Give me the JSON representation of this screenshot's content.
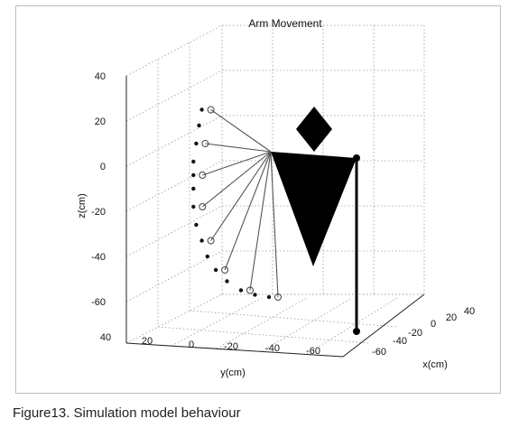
{
  "chart_data": {
    "type": "line",
    "title": "Arm Movement",
    "xlabel": "x(cm)",
    "ylabel": "y(cm)",
    "zlabel": "z(cm)",
    "grid": true,
    "x_ticks": [
      "-60",
      "-40",
      "-20",
      "0",
      "20",
      "40"
    ],
    "y_ticks": [
      "40",
      "20",
      "0",
      "-20",
      "-40",
      "-60"
    ],
    "z_ticks": [
      "40",
      "20",
      "0",
      "-20",
      "-40",
      "-60"
    ],
    "xlim": [
      -60,
      40
    ],
    "ylim": [
      -60,
      40
    ],
    "zlim": [
      -60,
      40
    ],
    "series": [
      {
        "values": [
          {
            "y": 28,
            "z": 25
          },
          {
            "y": 29,
            "z": 18
          },
          {
            "y": 30,
            "z": 10
          },
          {
            "y": 31,
            "z": 2
          },
          {
            "y": 31,
            "z": -4
          },
          {
            "y": 31,
            "z": -10
          },
          {
            "y": 31,
            "z": -18
          },
          {
            "y": 30,
            "z": -26
          },
          {
            "y": 28,
            "z": -33
          },
          {
            "y": 26,
            "z": -40
          },
          {
            "y": 23,
            "z": -46
          },
          {
            "y": 19,
            "z": -51
          },
          {
            "y": 14,
            "z": -55
          },
          {
            "y": 9,
            "z": -57
          },
          {
            "y": 4,
            "z": -58
          }
        ]
      }
    ]
  },
  "caption": "Figure13. Simulation model behaviour"
}
